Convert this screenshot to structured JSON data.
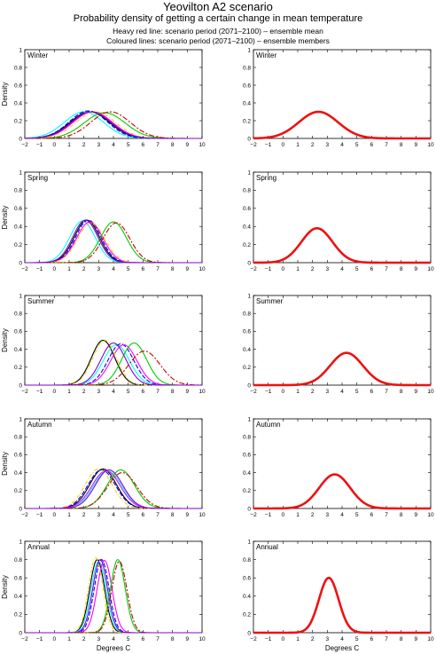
{
  "header": {
    "title": "Yeovilton A2 scenario",
    "subtitle": "Probability density of getting a certain change in mean temperature",
    "note1": "Heavy red line: scenario period (2071–2100) – ensemble mean",
    "note2": "Coloured lines: scenario period (2071–2100) – ensemble members"
  },
  "axes": {
    "ylabel": "Density",
    "xlabel": "Degrees C",
    "xticks": [
      "−2",
      "−1",
      "0",
      "1",
      "2",
      "3",
      "4",
      "5",
      "6",
      "7",
      "8",
      "9",
      "10"
    ],
    "yticks": [
      "0",
      "0.2",
      "0.4",
      "0.6",
      "0.8",
      "1"
    ]
  },
  "colors": {
    "mean": "#ee1111",
    "members": [
      "#000000",
      "#00ffff",
      "#0000ff",
      "#ff00ff",
      "#00cc00",
      "#ffcc00",
      "#cc0000",
      "#8800cc"
    ]
  },
  "chart_data": [
    {
      "type": "line",
      "panel": "members",
      "season": "Winter",
      "xlim": [
        -2,
        10
      ],
      "ylim": [
        0,
        1
      ],
      "series": [
        {
          "peak_x": 2.4,
          "peak_y": 0.3
        },
        {
          "peak_x": 2.0,
          "peak_y": 0.3
        },
        {
          "peak_x": 2.3,
          "peak_y": 0.31
        },
        {
          "peak_x": 2.6,
          "peak_y": 0.3
        },
        {
          "peak_x": 3.4,
          "peak_y": 0.29
        },
        {
          "peak_x": 2.8,
          "peak_y": 0.3
        },
        {
          "peak_x": 3.8,
          "peak_y": 0.3
        },
        {
          "peak_x": 2.5,
          "peak_y": 0.3
        }
      ]
    },
    {
      "type": "line",
      "panel": "mean",
      "season": "Winter",
      "xlim": [
        -2,
        10
      ],
      "ylim": [
        0,
        1
      ],
      "peak_x": 2.4,
      "peak_y": 0.3
    },
    {
      "type": "line",
      "panel": "members",
      "season": "Spring",
      "xlim": [
        -2,
        10
      ],
      "ylim": [
        0,
        1
      ],
      "series": [
        {
          "peak_x": 2.2,
          "peak_y": 0.47
        },
        {
          "peak_x": 1.9,
          "peak_y": 0.46
        },
        {
          "peak_x": 2.3,
          "peak_y": 0.47
        },
        {
          "peak_x": 2.4,
          "peak_y": 0.45
        },
        {
          "peak_x": 4.0,
          "peak_y": 0.45
        },
        {
          "peak_x": 2.5,
          "peak_y": 0.44
        },
        {
          "peak_x": 4.2,
          "peak_y": 0.44
        },
        {
          "peak_x": 2.1,
          "peak_y": 0.47
        }
      ]
    },
    {
      "type": "line",
      "panel": "mean",
      "season": "Spring",
      "xlim": [
        -2,
        10
      ],
      "ylim": [
        0,
        1
      ],
      "peak_x": 2.3,
      "peak_y": 0.38
    },
    {
      "type": "line",
      "panel": "members",
      "season": "Summer",
      "xlim": [
        -2,
        10
      ],
      "ylim": [
        0,
        1
      ],
      "series": [
        {
          "peak_x": 3.3,
          "peak_y": 0.5
        },
        {
          "peak_x": 4.2,
          "peak_y": 0.45
        },
        {
          "peak_x": 4.5,
          "peak_y": 0.46
        },
        {
          "peak_x": 4.7,
          "peak_y": 0.45
        },
        {
          "peak_x": 5.4,
          "peak_y": 0.47
        },
        {
          "peak_x": 3.4,
          "peak_y": 0.5
        },
        {
          "peak_x": 6.1,
          "peak_y": 0.38
        },
        {
          "peak_x": 4.0,
          "peak_y": 0.47
        }
      ]
    },
    {
      "type": "line",
      "panel": "mean",
      "season": "Summer",
      "xlim": [
        -2,
        10
      ],
      "ylim": [
        0,
        1
      ],
      "peak_x": 4.3,
      "peak_y": 0.36
    },
    {
      "type": "line",
      "panel": "members",
      "season": "Autumn",
      "xlim": [
        -2,
        10
      ],
      "ylim": [
        0,
        1
      ],
      "series": [
        {
          "peak_x": 3.3,
          "peak_y": 0.44
        },
        {
          "peak_x": 3.6,
          "peak_y": 0.42
        },
        {
          "peak_x": 3.2,
          "peak_y": 0.43
        },
        {
          "peak_x": 3.5,
          "peak_y": 0.42
        },
        {
          "peak_x": 4.5,
          "peak_y": 0.43
        },
        {
          "peak_x": 3.0,
          "peak_y": 0.44
        },
        {
          "peak_x": 4.6,
          "peak_y": 0.4
        },
        {
          "peak_x": 3.7,
          "peak_y": 0.43
        }
      ]
    },
    {
      "type": "line",
      "panel": "mean",
      "season": "Autumn",
      "xlim": [
        -2,
        10
      ],
      "ylim": [
        0,
        1
      ],
      "peak_x": 3.5,
      "peak_y": 0.38
    },
    {
      "type": "line",
      "panel": "members",
      "season": "Annual",
      "xlim": [
        -2,
        10
      ],
      "ylim": [
        0,
        1
      ],
      "series": [
        {
          "peak_x": 2.9,
          "peak_y": 0.8
        },
        {
          "peak_x": 3.0,
          "peak_y": 0.78
        },
        {
          "peak_x": 3.2,
          "peak_y": 0.8
        },
        {
          "peak_x": 3.4,
          "peak_y": 0.79
        },
        {
          "peak_x": 4.3,
          "peak_y": 0.8
        },
        {
          "peak_x": 2.8,
          "peak_y": 0.82
        },
        {
          "peak_x": 4.4,
          "peak_y": 0.78
        },
        {
          "peak_x": 3.1,
          "peak_y": 0.8
        }
      ]
    },
    {
      "type": "line",
      "panel": "mean",
      "season": "Annual",
      "xlim": [
        -2,
        10
      ],
      "ylim": [
        0,
        1
      ],
      "peak_x": 3.1,
      "peak_y": 0.6
    }
  ]
}
